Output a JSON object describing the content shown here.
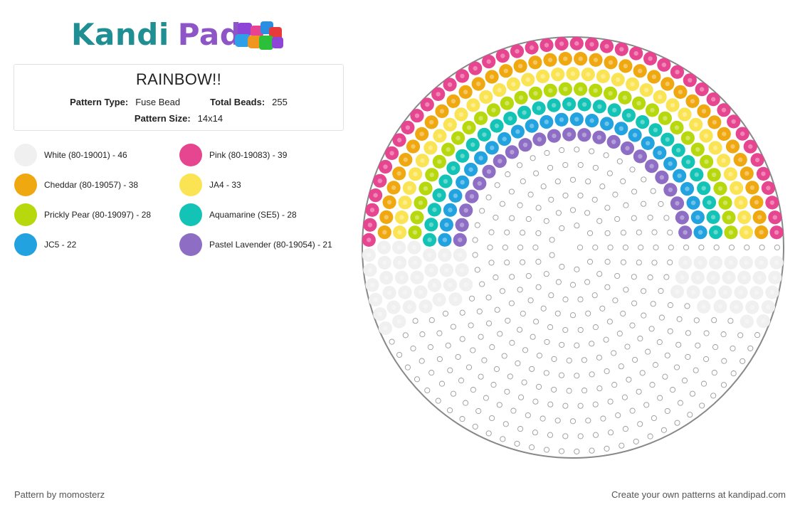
{
  "brand": {
    "word1": "Kandi",
    "word2": "Pad"
  },
  "pattern": {
    "title": "RAINBOW!!",
    "type_label": "Pattern Type:",
    "type_value": "Fuse Bead",
    "total_label": "Total Beads:",
    "total_value": "255",
    "size_label": "Pattern Size:",
    "size_value": "14x14"
  },
  "legend": [
    {
      "label": "White (80-19001) - 46",
      "color": "#f0f0f0"
    },
    {
      "label": "Pink (80-19083) - 39",
      "color": "#e6468f"
    },
    {
      "label": "Cheddar (80-19057) - 38",
      "color": "#f0a810"
    },
    {
      "label": "JA4 - 33",
      "color": "#fbe453"
    },
    {
      "label": "Prickly Pear (80-19097) - 28",
      "color": "#b8d80e"
    },
    {
      "label": "Aquamarine (SE5) - 28",
      "color": "#13c3b5"
    },
    {
      "label": "JC5 - 22",
      "color": "#22a3e0"
    },
    {
      "label": "Pastel Lavender (80-19054) - 21",
      "color": "#8d6ec4"
    }
  ],
  "footer": {
    "credit": "Pattern by momosterz",
    "cta": "Create your own patterns at kandipad.com"
  },
  "colors": {
    "white": "#f0f0f0",
    "pink": "#e6468f",
    "cheddar": "#f0a810",
    "yellow": "#fbe453",
    "green": "#b8d80e",
    "aqua": "#13c3b5",
    "blue": "#22a3e0",
    "lavender": "#8d6ec4",
    "peg": "#9a9a9a",
    "board_edge": "#888888"
  }
}
